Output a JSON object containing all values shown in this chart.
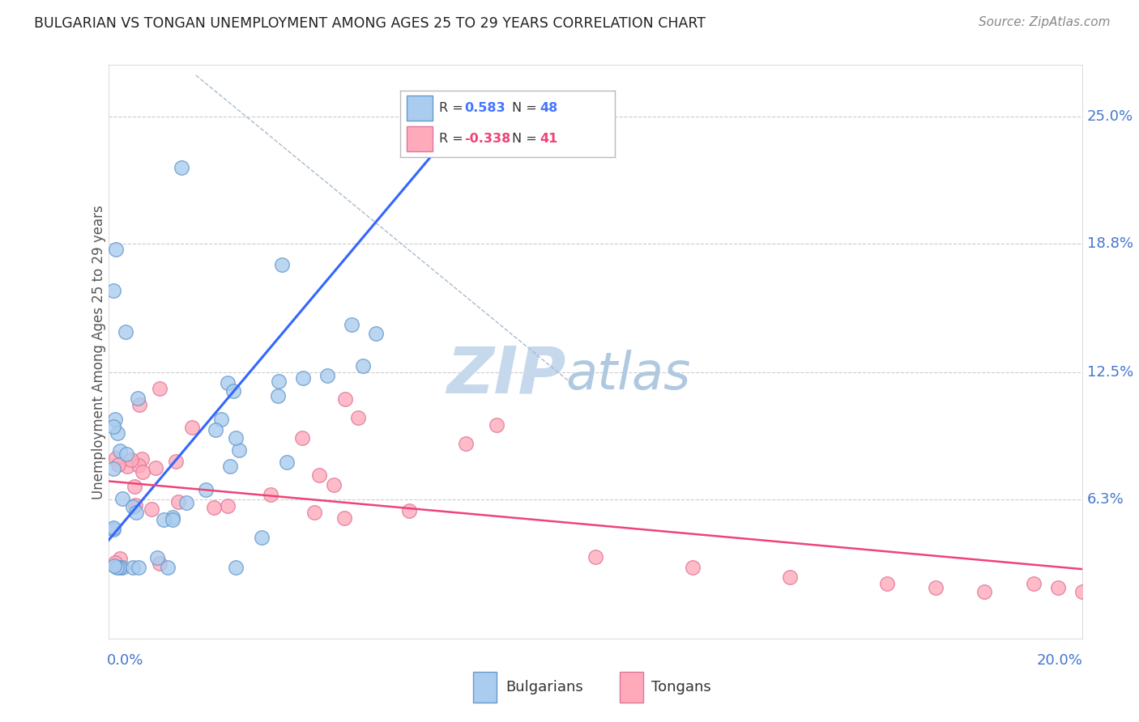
{
  "title": "BULGARIAN VS TONGAN UNEMPLOYMENT AMONG AGES 25 TO 29 YEARS CORRELATION CHART",
  "source": "Source: ZipAtlas.com",
  "ylabel": "Unemployment Among Ages 25 to 29 years",
  "xlim": [
    0.0,
    0.2
  ],
  "ylim": [
    -0.005,
    0.275
  ],
  "ytick_values": [
    0.063,
    0.125,
    0.188,
    0.25
  ],
  "ytick_labels": [
    "6.3%",
    "12.5%",
    "18.8%",
    "25.0%"
  ],
  "xtick_left": "0.0%",
  "xtick_right": "20.0%",
  "r_bulgarian": "0.583",
  "n_bulgarian": "48",
  "r_tongan": "-0.338",
  "n_tongan": "41",
  "bg_color": "#ffffff",
  "grid_color": "#cccccc",
  "bulgarian_face": "#aaccee",
  "bulgarian_edge": "#6699cc",
  "tongan_face": "#ffaabb",
  "tongan_edge": "#dd7799",
  "blue_trend_color": "#3366ff",
  "pink_trend_color": "#ee4477",
  "dash_color": "#aabbcc",
  "watermark_zip_color": "#c5d8ec",
  "watermark_atlas_color": "#b0c8e0",
  "title_color": "#222222",
  "source_color": "#888888",
  "axis_blue": "#4477cc",
  "legend_border_color": "#bbbbbb",
  "legend_text_color": "#333333",
  "blue_r_color": "#4477ff",
  "pink_r_color": "#ee4477"
}
